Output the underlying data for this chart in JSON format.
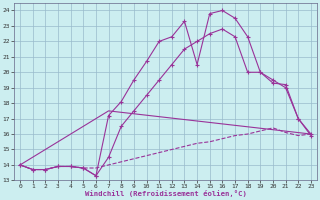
{
  "background_color": "#cceef0",
  "grid_color": "#99bbcc",
  "line_color": "#993399",
  "xlabel": "Windchill (Refroidissement éolien,°C)",
  "xlim": [
    -0.5,
    23.5
  ],
  "ylim": [
    13,
    24.5
  ],
  "yticks": [
    13,
    14,
    15,
    16,
    17,
    18,
    19,
    20,
    21,
    22,
    23,
    24
  ],
  "xticks": [
    0,
    1,
    2,
    3,
    4,
    5,
    6,
    7,
    8,
    9,
    10,
    11,
    12,
    13,
    14,
    15,
    16,
    17,
    18,
    19,
    20,
    21,
    22,
    23
  ],
  "series": [
    {
      "x": [
        0,
        1,
        2,
        3,
        4,
        5,
        6,
        7,
        8,
        9,
        10,
        11,
        12,
        13,
        14,
        15,
        16,
        17,
        18,
        19,
        20,
        21,
        22,
        23
      ],
      "y": [
        14.0,
        13.7,
        13.7,
        13.9,
        13.9,
        13.8,
        13.3,
        17.2,
        18.1,
        19.5,
        20.7,
        22.0,
        22.3,
        23.3,
        20.5,
        23.8,
        24.0,
        23.5,
        22.3,
        20.0,
        19.3,
        19.2,
        17.0,
        15.9
      ],
      "marker": true,
      "linestyle": "solid"
    },
    {
      "x": [
        0,
        1,
        2,
        3,
        4,
        5,
        6,
        7,
        8,
        9,
        10,
        11,
        12,
        13,
        14,
        15,
        16,
        17,
        18,
        19,
        20,
        21,
        22,
        23
      ],
      "y": [
        14.0,
        13.7,
        13.7,
        13.9,
        13.9,
        13.8,
        13.3,
        14.5,
        16.5,
        17.5,
        18.5,
        19.5,
        20.5,
        21.5,
        22.0,
        22.5,
        22.8,
        22.3,
        20.0,
        20.0,
        19.5,
        19.0,
        17.0,
        16.0
      ],
      "marker": true,
      "linestyle": "solid"
    },
    {
      "x": [
        0,
        7,
        23
      ],
      "y": [
        14.0,
        17.5,
        16.0
      ],
      "marker": false,
      "linestyle": "solid"
    },
    {
      "x": [
        0,
        1,
        2,
        3,
        4,
        5,
        6,
        7,
        8,
        9,
        10,
        11,
        12,
        13,
        14,
        15,
        16,
        17,
        18,
        19,
        20,
        21,
        22,
        23
      ],
      "y": [
        14.0,
        13.7,
        13.7,
        13.9,
        13.9,
        13.8,
        13.8,
        14.0,
        14.2,
        14.4,
        14.6,
        14.8,
        15.0,
        15.2,
        15.4,
        15.5,
        15.7,
        15.9,
        16.0,
        16.2,
        16.4,
        16.1,
        15.9,
        16.0
      ],
      "marker": false,
      "linestyle": "dashed"
    }
  ]
}
